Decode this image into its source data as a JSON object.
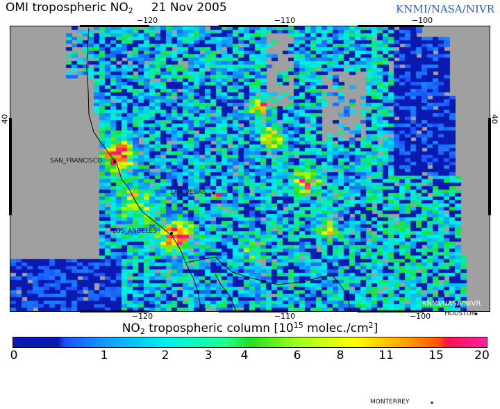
{
  "header": {
    "title_main": "OMI tropospheric NO",
    "title_sub": "2",
    "title_date": "21 Nov 2005",
    "credit": "KNMI/NASA/NIVR"
  },
  "map": {
    "lon_ticks_top": [
      "−120",
      "−110",
      "−100"
    ],
    "lon_ticks_bottom": [
      "−120",
      "−110",
      "−100"
    ],
    "lat_tick_left": "40",
    "lat_tick_right": "40",
    "cities": [
      "SAN_FRANCISCO",
      "LAS_VEGAS",
      "LOS_ANGELES",
      "HOUSTON",
      "MONTERREY"
    ],
    "watermark": "KNMI/NASA/NIVR",
    "no_data_color": "#a0a0a0"
  },
  "colorbar": {
    "label_a": "NO",
    "label_a_sub": "2",
    "label_b": " tropospheric column [10",
    "label_b_sup": "15",
    "label_c": " molec./cm",
    "label_c_sup": "2",
    "label_d": "]",
    "ticks": [
      "0",
      "1",
      "2",
      "3",
      "4",
      "6",
      "8",
      "11",
      "15",
      "20"
    ],
    "colors": [
      "#0a1ab0",
      "#1e50ff",
      "#00f0f0",
      "#20e020",
      "#ffff00",
      "#ffa000",
      "#ff1050",
      "#ff20a0"
    ]
  }
}
